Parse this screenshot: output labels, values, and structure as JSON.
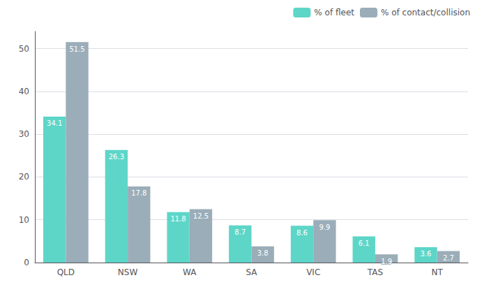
{
  "chart_data": {
    "type": "bar",
    "categories": [
      "QLD",
      "NSW",
      "WA",
      "SA",
      "VIC",
      "TAS",
      "NT"
    ],
    "series": [
      {
        "name": "% of fleet",
        "color": "#5DD6C8",
        "values": [
          34.1,
          26.3,
          11.8,
          8.7,
          8.6,
          6.1,
          3.6
        ]
      },
      {
        "name": "% of contact/collision",
        "color": "#9BADB8",
        "values": [
          51.5,
          17.8,
          12.5,
          3.8,
          9.9,
          1.9,
          2.7
        ]
      }
    ],
    "ylim": [
      0,
      54
    ],
    "yticks": [
      0,
      10,
      20,
      30,
      40,
      50
    ],
    "grid": true,
    "legend": "upper right",
    "data_labels": true
  }
}
